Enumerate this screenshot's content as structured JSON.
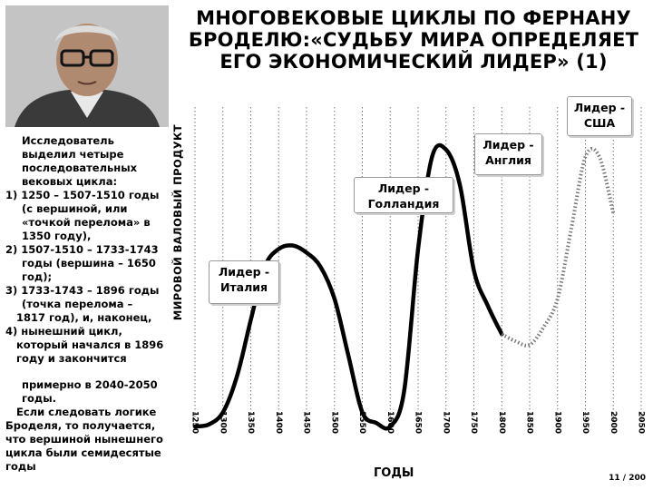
{
  "title": "МНОГОВЕКОВЫЕ ЦИКЛЫ ПО ФЕРНАНУ БРОДЕЛЮ:«СУДЬБУ МИРА ОПРЕДЕЛЯЕТ ЕГО ЭКОНОМИЧЕСКИЙ ЛИДЕР» (1)",
  "description": {
    "intro": "Исследователь выделил четыре последовательных вековых цикла:",
    "item1_a": "1) 1250 – 1507-1510 годы",
    "item1_b": "(с вершиной, или «точкой перелома» в 1350 году),",
    "item2_a": "2) 1507-1510 – 1733-1743",
    "item2_b": "годы (вершина – 1650 год);",
    "item3_a": "3) 1733-1743 – 1896 годы",
    "item3_b": "(точка перелома –",
    "item3_c": "1817 год), и, наконец,",
    "item4_a": "4) нынешний цикл,",
    "item4_b": "который начался в 1896 году и закончится",
    "item4_c": "примерно в 2040-2050 годы.",
    "conclusion_a": "Если следовать логике",
    "conclusion_b": "Броделя, то получается, что вершиной нынешнего цикла были семидесятые годы"
  },
  "axes": {
    "ylabel": "МИРОВОЙ ВАЛОВЫЙ ПРОДУКТ",
    "xlabel": "ГОДЫ"
  },
  "leaders": [
    {
      "text": "Лидер - Италия"
    },
    {
      "text": "Лидер - Голландия"
    },
    {
      "text": "Лидер - Англия"
    },
    {
      "text": "Лидер - США"
    }
  ],
  "page_number": "11 / 200",
  "chart_data": {
    "type": "line",
    "x_ticks": [
      "1250",
      "1300",
      "1350",
      "1400",
      "1450",
      "1500",
      "1550",
      "1600",
      "1650",
      "1700",
      "1750",
      "1800",
      "1850",
      "1900",
      "1950",
      "2000",
      "2050"
    ],
    "x": [
      1250,
      1275,
      1300,
      1325,
      1350,
      1375,
      1400,
      1425,
      1450,
      1475,
      1500,
      1525,
      1550,
      1575,
      1600,
      1625,
      1650,
      1675,
      1700,
      1725,
      1750,
      1775,
      1800,
      1825,
      1850,
      1875,
      1900,
      1925,
      1950,
      1975,
      2000
    ],
    "y": [
      0,
      0.3,
      2,
      7,
      15,
      22.5,
      25,
      25.5,
      24.5,
      22.5,
      18,
      10,
      2,
      0.5,
      0,
      5,
      25,
      38,
      39,
      34,
      22,
      17,
      13,
      12,
      11.5,
      14,
      18,
      28,
      38,
      38,
      30
    ],
    "solid_until": 1800,
    "x_range": [
      1250,
      2050
    ],
    "y_range": [
      0,
      45
    ],
    "y_unit": "relative",
    "grid": "vertical dotted"
  }
}
